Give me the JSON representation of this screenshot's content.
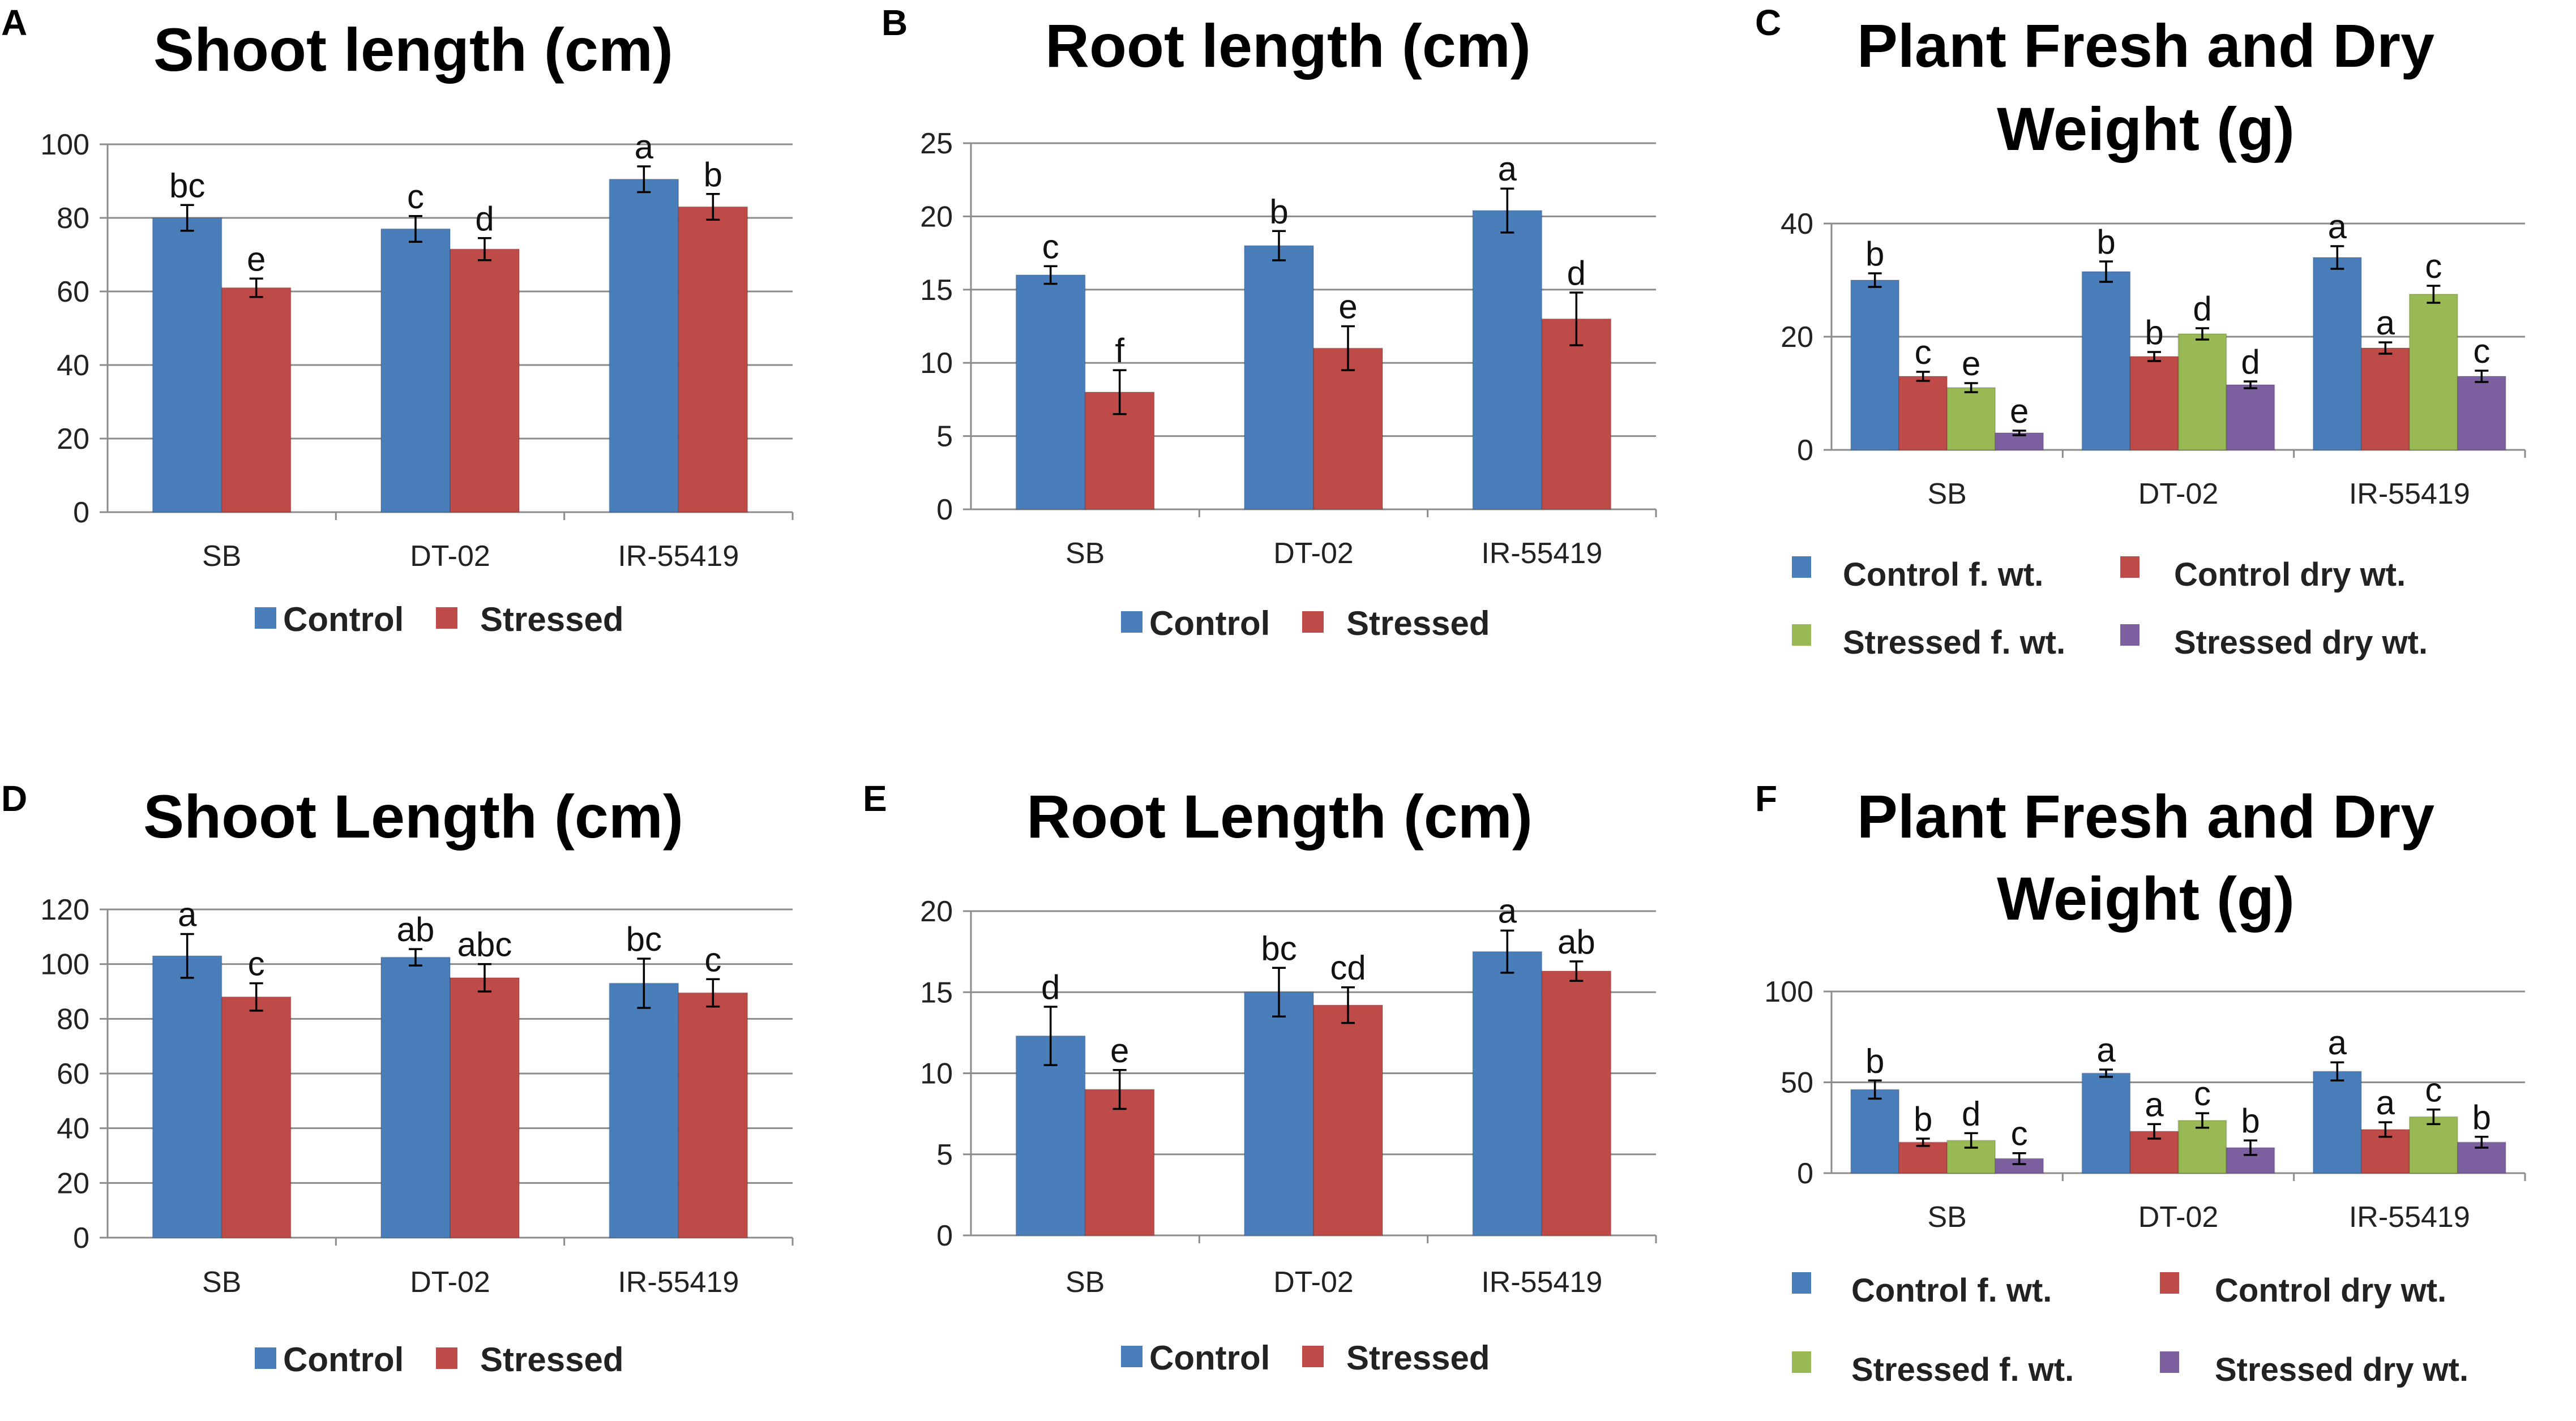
{
  "figure": {
    "colors": {
      "control": "#4a7ebb",
      "stressed": "#be4b48",
      "stressed_fwt": "#98b954",
      "stressed_dwt": "#7d60a0",
      "grid": "#8c8c8c",
      "axis": "#8c8c8c"
    }
  },
  "chart_data": [
    {
      "panel": "A",
      "type": "bar",
      "title": [
        "Shoot length (cm)"
      ],
      "categories": [
        "SB",
        "DT-02",
        "IR-55419"
      ],
      "ylim": [
        0,
        100
      ],
      "yticks": [
        0,
        20,
        40,
        60,
        80,
        100
      ],
      "series": [
        {
          "name": "Control",
          "color_key": "control",
          "values": [
            80,
            77,
            90.5
          ],
          "errors": [
            3.5,
            3.5,
            3.5
          ],
          "labels": [
            "bc",
            "c",
            "a"
          ]
        },
        {
          "name": "Stressed",
          "color_key": "stressed",
          "values": [
            61,
            71.5,
            83
          ],
          "errors": [
            2.5,
            3,
            3.5
          ],
          "labels": [
            "e",
            "d",
            "b"
          ]
        }
      ],
      "legend": [
        "Control",
        "Stressed"
      ]
    },
    {
      "panel": "B",
      "type": "bar",
      "title": [
        "Root length (cm)"
      ],
      "categories": [
        "SB",
        "DT-02",
        "IR-55419"
      ],
      "ylim": [
        0,
        25
      ],
      "yticks": [
        0,
        5,
        10,
        15,
        20,
        25
      ],
      "series": [
        {
          "name": "Control",
          "color_key": "control",
          "values": [
            16,
            18,
            20.4
          ],
          "errors": [
            0.6,
            1.0,
            1.5
          ],
          "labels": [
            "c",
            "b",
            "a"
          ]
        },
        {
          "name": "Stressed",
          "color_key": "stressed",
          "values": [
            8,
            11,
            13
          ],
          "errors": [
            1.5,
            1.5,
            1.8
          ],
          "labels": [
            "f",
            "e",
            "d"
          ]
        }
      ],
      "legend": [
        "Control",
        "Stressed"
      ]
    },
    {
      "panel": "C",
      "type": "bar",
      "title": [
        "Plant Fresh and Dry",
        "Weight (g)"
      ],
      "categories": [
        "SB",
        "DT-02",
        "IR-55419"
      ],
      "ylim": [
        0,
        40
      ],
      "yticks": [
        0,
        20,
        40
      ],
      "series": [
        {
          "name": "Control f. wt.",
          "color_key": "control",
          "values": [
            30,
            31.5,
            34
          ],
          "errors": [
            1.2,
            1.8,
            2.0
          ],
          "labels": [
            "b",
            "b",
            "a"
          ]
        },
        {
          "name": "Control dry wt.",
          "color_key": "stressed",
          "values": [
            13,
            16.5,
            18
          ],
          "errors": [
            0.8,
            0.8,
            1.0
          ],
          "labels": [
            "c",
            "b",
            "a"
          ]
        },
        {
          "name": "Stressed f. wt.",
          "color_key": "stressed_fwt",
          "values": [
            11,
            20.5,
            27.5
          ],
          "errors": [
            0.8,
            1.0,
            1.5
          ],
          "labels": [
            "e",
            "d",
            "c"
          ]
        },
        {
          "name": "Stressed dry wt.",
          "color_key": "stressed_dwt",
          "values": [
            3,
            11.5,
            13
          ],
          "errors": [
            0.4,
            0.6,
            1.0
          ],
          "labels": [
            "e",
            "d",
            "c"
          ]
        }
      ],
      "legend": [
        "Control f. wt.",
        "Control dry wt.",
        "Stressed f. wt.",
        "Stressed dry wt."
      ]
    },
    {
      "panel": "D",
      "type": "bar",
      "title": [
        "Shoot Length (cm)"
      ],
      "categories": [
        "SB",
        "DT-02",
        "IR-55419"
      ],
      "ylim": [
        0,
        120
      ],
      "yticks": [
        0,
        20,
        40,
        60,
        80,
        100,
        120
      ],
      "series": [
        {
          "name": "Control",
          "color_key": "control",
          "values": [
            103,
            102.5,
            93
          ],
          "errors": [
            8,
            3,
            9
          ],
          "labels": [
            "a",
            "ab",
            "bc"
          ]
        },
        {
          "name": "Stressed",
          "color_key": "stressed",
          "values": [
            88,
            95,
            89.5
          ],
          "errors": [
            5,
            5,
            5
          ],
          "labels": [
            "c",
            "abc",
            "c"
          ]
        }
      ],
      "legend": [
        "Control",
        "Stressed"
      ]
    },
    {
      "panel": "E",
      "type": "bar",
      "title": [
        "Root Length (cm)"
      ],
      "categories": [
        "SB",
        "DT-02",
        "IR-55419"
      ],
      "ylim": [
        0,
        20
      ],
      "yticks": [
        0,
        5,
        10,
        15,
        20
      ],
      "series": [
        {
          "name": "Control",
          "color_key": "control",
          "values": [
            12.3,
            15,
            17.5
          ],
          "errors": [
            1.8,
            1.5,
            1.3
          ],
          "labels": [
            "d",
            "bc",
            "a"
          ]
        },
        {
          "name": "Stressed",
          "color_key": "stressed",
          "values": [
            9,
            14.2,
            16.3
          ],
          "errors": [
            1.2,
            1.1,
            0.6
          ],
          "labels": [
            "e",
            "cd",
            "ab"
          ]
        }
      ],
      "legend": [
        "Control",
        "Stressed"
      ]
    },
    {
      "panel": "F",
      "type": "bar",
      "title": [
        "Plant Fresh and Dry",
        "Weight (g)"
      ],
      "categories": [
        "SB",
        "DT-02",
        "IR-55419"
      ],
      "ylim": [
        0,
        100
      ],
      "yticks": [
        0,
        50,
        100
      ],
      "series": [
        {
          "name": "Control f. wt.",
          "color_key": "control",
          "values": [
            46,
            55,
            56
          ],
          "errors": [
            5,
            2,
            5
          ],
          "labels": [
            "b",
            "a",
            "a"
          ]
        },
        {
          "name": "Control dry wt.",
          "color_key": "stressed",
          "values": [
            17,
            23,
            24
          ],
          "errors": [
            2,
            4,
            4
          ],
          "labels": [
            "b",
            "a",
            "a"
          ]
        },
        {
          "name": "Stressed f. wt.",
          "color_key": "stressed_fwt",
          "values": [
            18,
            29,
            31
          ],
          "errors": [
            4,
            4,
            4
          ],
          "labels": [
            "d",
            "c",
            "c"
          ]
        },
        {
          "name": "Stressed dry wt.",
          "color_key": "stressed_dwt",
          "values": [
            8,
            14,
            17
          ],
          "errors": [
            3,
            4,
            3
          ],
          "labels": [
            "c",
            "b",
            "b"
          ]
        }
      ],
      "legend": [
        "Control f. wt.",
        "Control dry wt.",
        "Stressed f. wt.",
        "Stressed dry wt."
      ]
    }
  ]
}
